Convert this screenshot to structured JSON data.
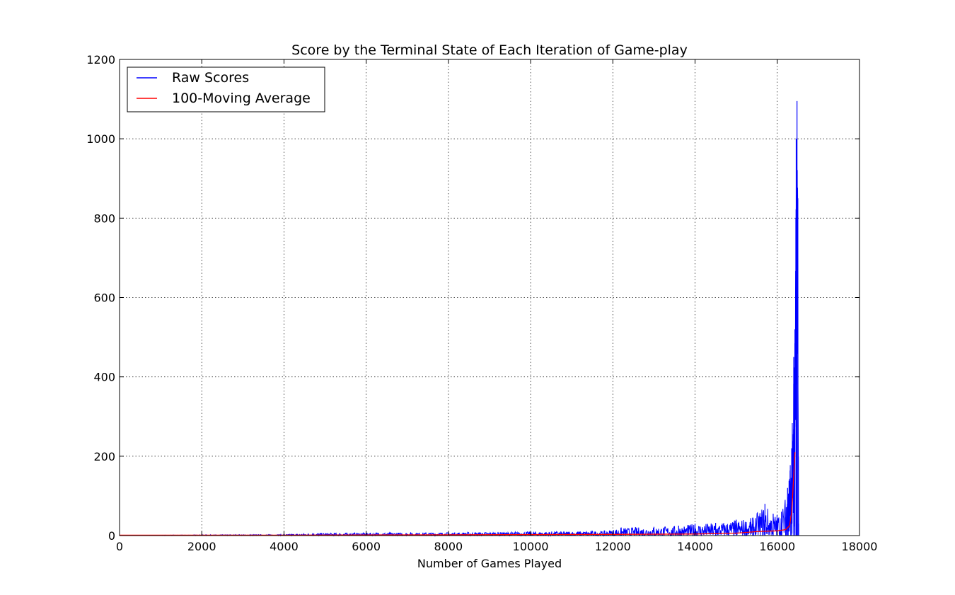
{
  "chart_data": {
    "type": "line",
    "title": "Score by the Terminal State of Each Iteration of Game-play",
    "xlabel": "Number of Games Played",
    "ylabel": "",
    "xlim": [
      0,
      18000
    ],
    "ylim": [
      0,
      1200
    ],
    "xticks": [
      0,
      2000,
      4000,
      6000,
      8000,
      10000,
      12000,
      14000,
      16000,
      18000
    ],
    "yticks": [
      0,
      200,
      400,
      600,
      800,
      1000,
      1200
    ],
    "grid": true,
    "legend_position": "top-left",
    "series": [
      {
        "name": "Raw Scores",
        "color": "#0000ff",
        "x": [
          0,
          2000,
          4000,
          4700,
          6000,
          8000,
          10000,
          11800,
          12200,
          13000,
          13600,
          14000,
          14500,
          15000,
          15400,
          15700,
          15900,
          16100,
          16250,
          16350,
          16400,
          16430,
          16460,
          16480,
          16500,
          16520
        ],
        "values": [
          0,
          2,
          3,
          6,
          7,
          8,
          10,
          12,
          20,
          22,
          25,
          30,
          32,
          40,
          45,
          80,
          55,
          60,
          120,
          220,
          450,
          520,
          1000,
          1095,
          850,
          30
        ]
      },
      {
        "name": "100-Moving Average",
        "color": "#ff0000",
        "x": [
          0,
          4000,
          8000,
          12000,
          14000,
          15000,
          15500,
          16000,
          16200,
          16300,
          16350,
          16400,
          16430
        ],
        "values": [
          1,
          1,
          2,
          3,
          4,
          6,
          10,
          12,
          15,
          25,
          60,
          150,
          210
        ]
      }
    ]
  }
}
